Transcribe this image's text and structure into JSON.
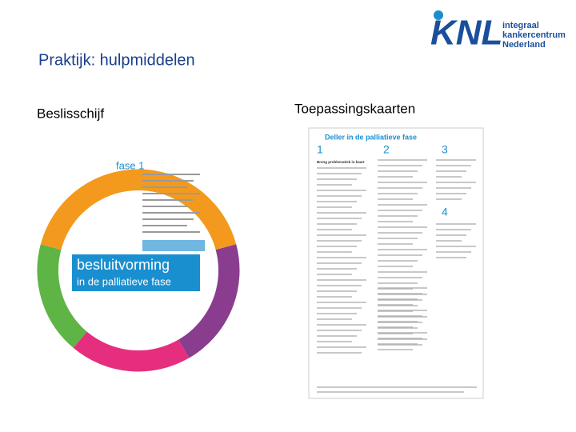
{
  "logo": {
    "mark": "KNL",
    "name": [
      "integraal",
      "kankercentrum",
      "Nederland"
    ]
  },
  "title": "Praktijk: hulpmiddelen",
  "left": {
    "heading": "Beslisschijf",
    "disc": {
      "segment": "Breng situatie in kaart",
      "phase": "fase 1",
      "center_title": [
        "besluitvorming",
        "in de palliatieve fase"
      ]
    }
  },
  "right": {
    "heading": "Toepassingskaarten",
    "card": {
      "title": "Deller in de palliatieve fase",
      "columns": [
        {
          "number": "1",
          "heading": "Breng problematiek in kaart"
        },
        {
          "number": "2"
        },
        {
          "number": "3"
        },
        {
          "number": "4"
        }
      ]
    }
  }
}
